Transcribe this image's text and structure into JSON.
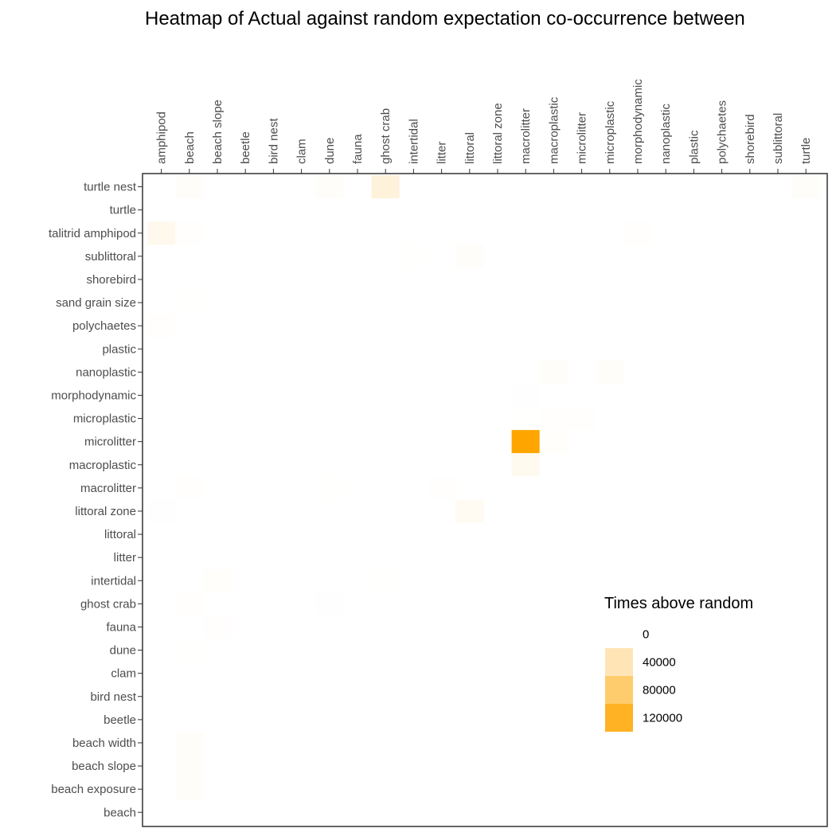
{
  "chart_data": {
    "type": "heatmap",
    "title": "Heatmap of Actual against random expectation co-occurrence between",
    "x_categories": [
      "amphipod",
      "beach",
      "beach slope",
      "beetle",
      "bird nest",
      "clam",
      "dune",
      "fauna",
      "ghost crab",
      "intertidal",
      "litter",
      "littoral",
      "littoral zone",
      "macrolitter",
      "macroplastic",
      "microlitter",
      "microplastic",
      "morphodynamic",
      "nanoplastic",
      "plastic",
      "polychaetes",
      "shorebird",
      "sublittoral",
      "turtle"
    ],
    "y_categories": [
      "turtle nest",
      "turtle",
      "talitrid amphipod",
      "sublittoral",
      "shorebird",
      "sand grain size",
      "polychaetes",
      "plastic",
      "nanoplastic",
      "morphodynamic",
      "microplastic",
      "microlitter",
      "macroplastic",
      "macrolitter",
      "littoral zone",
      "littoral",
      "litter",
      "intertidal",
      "ghost crab",
      "fauna",
      "dune",
      "clam",
      "bird nest",
      "beetle",
      "beach width",
      "beach slope",
      "beach exposure",
      "beach"
    ],
    "x_axis_position": "top",
    "cells": [
      {
        "y": "turtle nest",
        "x": "beach",
        "value": 3000
      },
      {
        "y": "turtle nest",
        "x": "dune",
        "value": 2500
      },
      {
        "y": "turtle nest",
        "x": "ghost crab",
        "value": 20000
      },
      {
        "y": "turtle nest",
        "x": "turtle",
        "value": 3000
      },
      {
        "y": "talitrid amphipod",
        "x": "amphipod",
        "value": 10000
      },
      {
        "y": "talitrid amphipod",
        "x": "beach",
        "value": 1200
      },
      {
        "y": "talitrid amphipod",
        "x": "morphodynamic",
        "value": 1500
      },
      {
        "y": "sublittoral",
        "x": "littoral",
        "value": 2500
      },
      {
        "y": "sublittoral",
        "x": "intertidal",
        "value": 600
      },
      {
        "y": "sand grain size",
        "x": "beach",
        "value": 500
      },
      {
        "y": "polychaetes",
        "x": "amphipod",
        "value": 1000
      },
      {
        "y": "nanoplastic",
        "x": "macroplastic",
        "value": 3000
      },
      {
        "y": "nanoplastic",
        "x": "microplastic",
        "value": 3000
      },
      {
        "y": "morphodynamic",
        "x": "macrolitter",
        "value": 800
      },
      {
        "y": "microplastic",
        "x": "macroplastic",
        "value": 1500
      },
      {
        "y": "microplastic",
        "x": "microlitter",
        "value": 1500
      },
      {
        "y": "microplastic",
        "x": "macrolitter",
        "value": 500
      },
      {
        "y": "microlitter",
        "x": "macrolitter",
        "value": 140000
      },
      {
        "y": "microlitter",
        "x": "macroplastic",
        "value": 2000
      },
      {
        "y": "macroplastic",
        "x": "macrolitter",
        "value": 8000
      },
      {
        "y": "macrolitter",
        "x": "beach",
        "value": 1500
      },
      {
        "y": "macrolitter",
        "x": "litter",
        "value": 1000
      },
      {
        "y": "macrolitter",
        "x": "dune",
        "value": 500
      },
      {
        "y": "littoral zone",
        "x": "littoral",
        "value": 7000
      },
      {
        "y": "littoral zone",
        "x": "amphipod",
        "value": 800
      },
      {
        "y": "intertidal",
        "x": "beach slope",
        "value": 2000
      },
      {
        "y": "intertidal",
        "x": "ghost crab",
        "value": 500
      },
      {
        "y": "ghost crab",
        "x": "beach",
        "value": 1500
      },
      {
        "y": "ghost crab",
        "x": "dune",
        "value": 800
      },
      {
        "y": "fauna",
        "x": "beach slope",
        "value": 1000
      },
      {
        "y": "dune",
        "x": "beach",
        "value": 500
      },
      {
        "y": "beach width",
        "x": "beach",
        "value": 2500
      },
      {
        "y": "beach slope",
        "x": "beach",
        "value": 2500
      },
      {
        "y": "beach exposure",
        "x": "beach",
        "value": 2500
      }
    ],
    "color_min": "#ffffff",
    "color_max": "#ffa500",
    "value_range": [
      0,
      140000
    ],
    "legend": {
      "title": "Times above random",
      "position": "bottom-right",
      "entries": [
        {
          "label": "0",
          "value": 0
        },
        {
          "label": "40000",
          "value": 40000
        },
        {
          "label": "80000",
          "value": 80000
        },
        {
          "label": "120000",
          "value": 120000
        }
      ]
    },
    "grid": false
  }
}
